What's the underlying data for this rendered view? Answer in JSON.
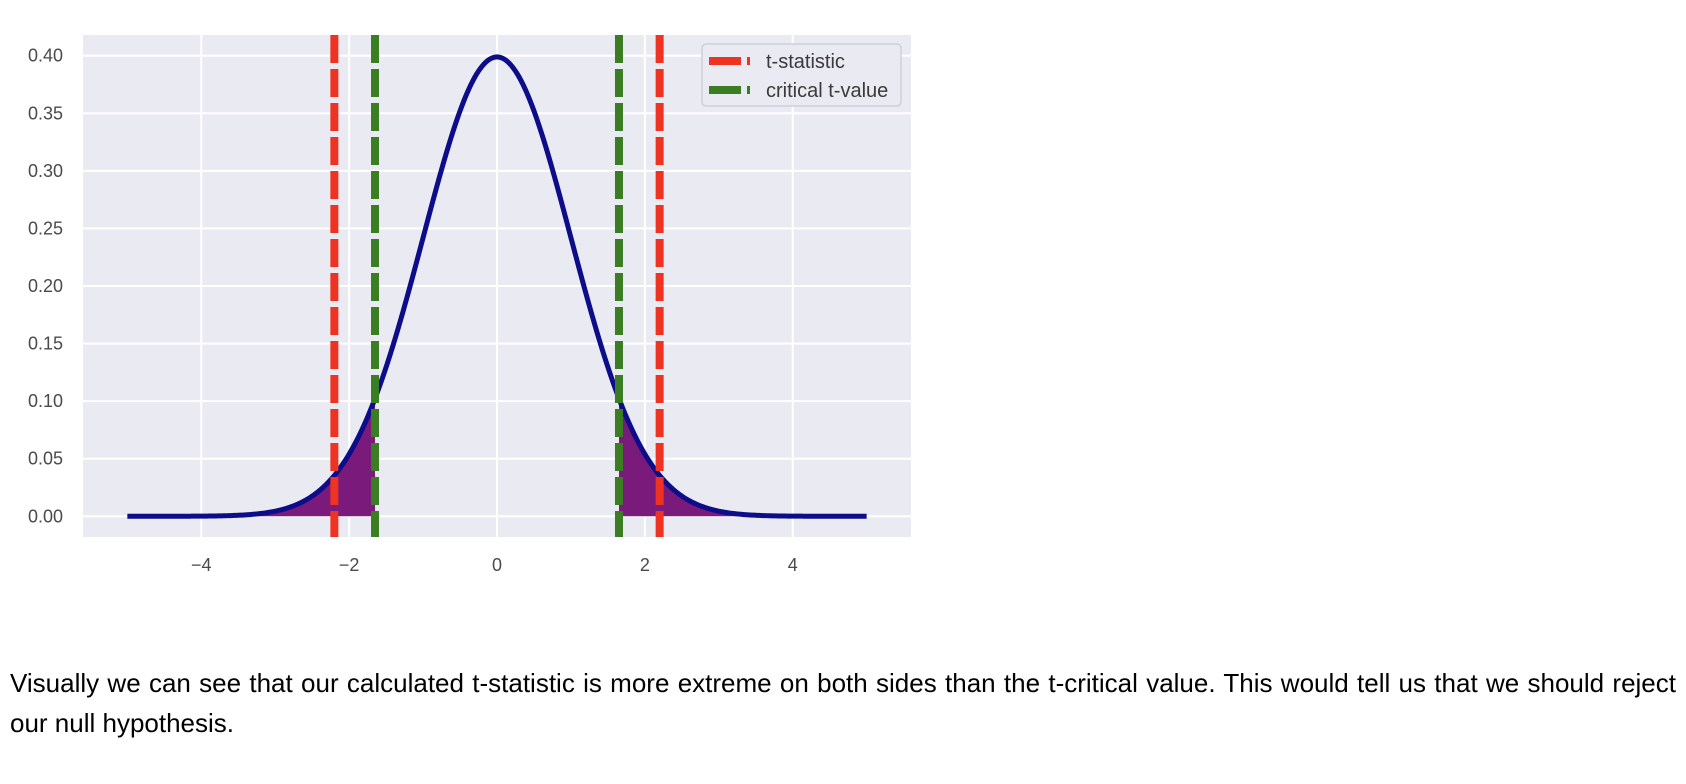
{
  "chart_data": {
    "type": "line",
    "title": "",
    "xlabel": "",
    "ylabel": "",
    "xlim": [
      -5.6,
      5.6
    ],
    "ylim": [
      -0.018,
      0.418
    ],
    "x_ticks": [
      -4,
      -2,
      0,
      2,
      4
    ],
    "x_tick_labels": [
      "−4",
      "−2",
      "0",
      "2",
      "4"
    ],
    "y_ticks": [
      0.0,
      0.05,
      0.1,
      0.15,
      0.2,
      0.25,
      0.3,
      0.35,
      0.4
    ],
    "y_tick_labels": [
      "0.00",
      "0.05",
      "0.10",
      "0.15",
      "0.20",
      "0.25",
      "0.30",
      "0.35",
      "0.40"
    ],
    "grid": true,
    "legend_position": "top-right",
    "curve": {
      "distribution": "standard normal pdf",
      "x_range": [
        -5,
        5
      ],
      "color": "#0d0d8a"
    },
    "shaded_tails": {
      "left_upper_bound": -1.65,
      "right_lower_bound": 1.65,
      "color": "#7a1a7a"
    },
    "vlines": [
      {
        "name": "t-statistic",
        "x": [
          -2.2,
          2.2
        ],
        "color": "#ee3322",
        "style": "dashed"
      },
      {
        "name": "critical t-value",
        "x": [
          -1.65,
          1.65
        ],
        "color": "#3a7d22",
        "style": "dashed"
      }
    ],
    "legend": [
      {
        "label": "t-statistic",
        "color": "#ee3322"
      },
      {
        "label": "critical t-value",
        "color": "#3a7d22"
      }
    ],
    "colors": {
      "plot_background": "#eaeaf2",
      "grid": "#ffffff"
    }
  },
  "caption": "Visually we can see that our calculated t-statistic is more extreme on both sides than the t-critical value. This would tell us that we should reject our null hypothesis."
}
